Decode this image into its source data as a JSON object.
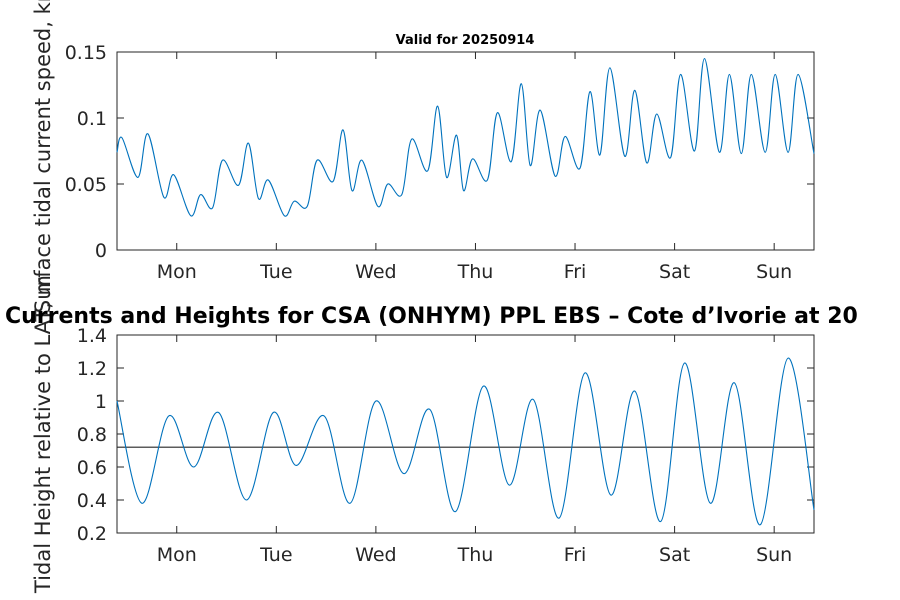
{
  "figure": {
    "main_title": "Currents and Heights for CSA (ONHYM) PPL EBS  – Cote d’Ivorie at 20"
  },
  "chart_data": [
    {
      "type": "line",
      "title": "Valid for 20250914",
      "xlabel": "",
      "ylabel": "Surface tidal current speed, kn",
      "x_tick_labels": [
        "Mon",
        "Tue",
        "Wed",
        "Thu",
        "Fri",
        "Sat",
        "Sun"
      ],
      "xlim_days": [
        0,
        7
      ],
      "x_tick_positions_days": [
        0.6,
        1.6,
        2.6,
        3.6,
        4.6,
        5.6,
        6.6
      ],
      "ylim": [
        0,
        0.15
      ],
      "y_ticks": [
        0,
        0.05,
        0.1,
        0.15
      ],
      "y_tick_labels": [
        "0",
        "0.05",
        "0.1",
        "0.15"
      ],
      "grid": false,
      "line_color": "#0072BD",
      "series": [
        {
          "x": [
            0.0,
            0.05,
            0.21,
            0.31,
            0.47,
            0.57,
            0.74,
            0.84,
            0.96,
            1.06,
            1.22,
            1.32,
            1.42,
            1.52,
            1.68,
            1.78,
            1.91,
            2.01,
            2.17,
            2.27,
            2.36,
            2.46,
            2.62,
            2.72,
            2.86,
            2.96,
            3.12,
            3.22,
            3.31,
            3.41,
            3.48,
            3.57,
            3.72,
            3.82,
            3.96,
            4.06,
            4.15,
            4.25,
            4.4,
            4.5,
            4.65,
            4.75,
            4.85,
            4.95,
            5.1,
            5.2,
            5.32,
            5.42,
            5.56,
            5.66,
            5.8,
            5.9,
            6.05,
            6.15,
            6.27,
            6.37,
            6.51,
            6.61,
            6.74,
            6.84,
            7.0
          ],
          "y": [
            0.074,
            0.085,
            0.055,
            0.088,
            0.04,
            0.057,
            0.026,
            0.042,
            0.032,
            0.068,
            0.049,
            0.081,
            0.039,
            0.053,
            0.026,
            0.037,
            0.033,
            0.068,
            0.052,
            0.091,
            0.045,
            0.068,
            0.033,
            0.05,
            0.042,
            0.084,
            0.06,
            0.109,
            0.055,
            0.087,
            0.045,
            0.069,
            0.053,
            0.104,
            0.067,
            0.126,
            0.064,
            0.106,
            0.056,
            0.086,
            0.062,
            0.12,
            0.072,
            0.138,
            0.071,
            0.121,
            0.066,
            0.103,
            0.07,
            0.133,
            0.075,
            0.145,
            0.074,
            0.133,
            0.073,
            0.133,
            0.074,
            0.133,
            0.074,
            0.133,
            0.073
          ]
        }
      ]
    },
    {
      "type": "line",
      "title": "",
      "xlabel": "",
      "ylabel": "Tidal Height relative to LAT, m",
      "x_tick_labels": [
        "Mon",
        "Tue",
        "Wed",
        "Thu",
        "Fri",
        "Sat",
        "Sun"
      ],
      "xlim_days": [
        0,
        7
      ],
      "x_tick_positions_days": [
        0.6,
        1.6,
        2.6,
        3.6,
        4.6,
        5.6,
        6.6
      ],
      "ylim": [
        0.2,
        1.4
      ],
      "y_ticks": [
        0.2,
        0.4,
        0.6,
        0.8,
        1,
        1.2,
        1.4
      ],
      "y_tick_labels": [
        "0.2",
        "0.4",
        "0.6",
        "0.8",
        "1",
        "1.2",
        "1.4"
      ],
      "grid": false,
      "line_color": "#0072BD",
      "reference_line": {
        "y": 0.72,
        "color": "#262626"
      },
      "series": [
        {
          "x": [
            0.0,
            0.25,
            0.52,
            0.77,
            1.02,
            1.3,
            1.57,
            1.8,
            2.08,
            2.34,
            2.6,
            2.88,
            3.14,
            3.4,
            3.68,
            3.94,
            4.18,
            4.44,
            4.7,
            4.96,
            5.2,
            5.46,
            5.7,
            5.96,
            6.2,
            6.46,
            6.74,
            7.0
          ],
          "y": [
            1.0,
            0.38,
            0.91,
            0.6,
            0.93,
            0.4,
            0.93,
            0.61,
            0.91,
            0.38,
            1.0,
            0.56,
            0.95,
            0.33,
            1.09,
            0.49,
            1.01,
            0.29,
            1.17,
            0.43,
            1.06,
            0.27,
            1.23,
            0.38,
            1.11,
            0.25,
            1.26,
            0.34
          ]
        }
      ]
    }
  ]
}
